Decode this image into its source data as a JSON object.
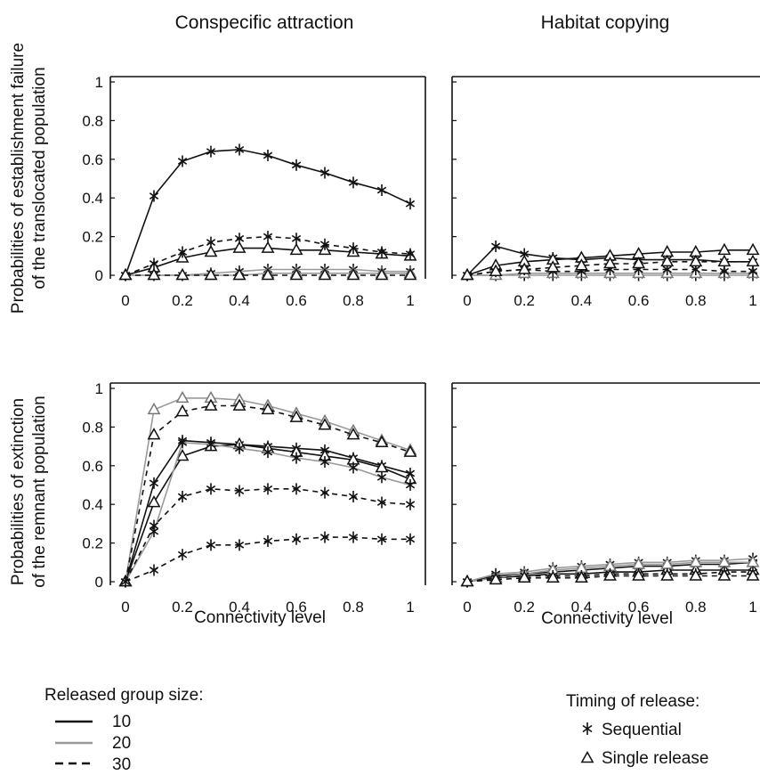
{
  "column_titles": [
    "Conspecific attraction",
    "Habitat copying"
  ],
  "row_labels": [
    [
      "Probabilities of establishment failure",
      "of the translocated population"
    ],
    [
      "Probabilities of extinction",
      "of the remnant population"
    ]
  ],
  "legend": {
    "group_size_title": "Released group size:",
    "group_sizes": [
      {
        "label": "10",
        "color": "#111111",
        "dash": "solid"
      },
      {
        "label": "20",
        "color": "#9a9a9a",
        "dash": "solid"
      },
      {
        "label": "30",
        "color": "#111111",
        "dash": "dashed"
      }
    ],
    "timing_title": "Timing of release:",
    "timings": [
      {
        "label": "Sequential",
        "marker": "asterisk"
      },
      {
        "label": "Single release",
        "marker": "triangle"
      }
    ]
  },
  "chart_data": [
    {
      "type": "line",
      "title": "Conspecific attraction",
      "xlabel": "",
      "ylabel": "Probabilities of establishment failure of the translocated population",
      "xlim": [
        0,
        1
      ],
      "ylim": [
        0,
        1
      ],
      "x": [
        0,
        0.1,
        0.2,
        0.3,
        0.4,
        0.5,
        0.6,
        0.7,
        0.8,
        0.9,
        1
      ],
      "x_ticks": [
        "0",
        "0.2",
        "0.4",
        "0.6",
        "0.8",
        "1"
      ],
      "y_ticks": [
        "0",
        "0.2",
        "0.4",
        "0.6",
        "0.8",
        "1"
      ],
      "series": [
        {
          "size": "10",
          "timing": "Sequential",
          "values": [
            0,
            0.41,
            0.59,
            0.64,
            0.65,
            0.62,
            0.57,
            0.53,
            0.48,
            0.44,
            0.37
          ]
        },
        {
          "size": "10",
          "timing": "Single release",
          "values": [
            0,
            0.04,
            0.09,
            0.12,
            0.14,
            0.14,
            0.13,
            0.13,
            0.12,
            0.11,
            0.1
          ]
        },
        {
          "size": "20",
          "timing": "Sequential",
          "values": [
            0,
            0,
            0,
            0.01,
            0.02,
            0.03,
            0.03,
            0.03,
            0.03,
            0.02,
            0.02
          ]
        },
        {
          "size": "20",
          "timing": "Single release",
          "values": [
            0,
            0,
            0,
            0,
            0,
            0.01,
            0.01,
            0.01,
            0.01,
            0.01,
            0.01
          ]
        },
        {
          "size": "30",
          "timing": "Sequential",
          "values": [
            0,
            0.06,
            0.12,
            0.17,
            0.19,
            0.2,
            0.19,
            0.16,
            0.14,
            0.12,
            0.11
          ]
        },
        {
          "size": "30",
          "timing": "Single release",
          "values": [
            0,
            0,
            0,
            0,
            0,
            0,
            0,
            0,
            0,
            0,
            0
          ]
        }
      ]
    },
    {
      "type": "line",
      "title": "Habitat copying",
      "xlabel": "",
      "ylabel": "",
      "xlim": [
        0,
        1
      ],
      "ylim": [
        0,
        1
      ],
      "x": [
        0,
        0.1,
        0.2,
        0.3,
        0.4,
        0.5,
        0.6,
        0.7,
        0.8,
        0.9,
        1
      ],
      "x_ticks": [
        "0",
        "0.2",
        "0.4",
        "0.6",
        "0.8",
        "1"
      ],
      "y_ticks": [],
      "series": [
        {
          "size": "10",
          "timing": "Sequential",
          "values": [
            0,
            0.15,
            0.11,
            0.09,
            0.08,
            0.09,
            0.08,
            0.08,
            0.08,
            0.07,
            0.07
          ]
        },
        {
          "size": "10",
          "timing": "Single release",
          "values": [
            0,
            0.05,
            0.07,
            0.08,
            0.09,
            0.1,
            0.11,
            0.12,
            0.12,
            0.13,
            0.13
          ]
        },
        {
          "size": "20",
          "timing": "Sequential",
          "values": [
            0,
            0,
            0,
            0,
            0,
            0,
            0,
            0,
            0,
            0,
            0
          ]
        },
        {
          "size": "20",
          "timing": "Single release",
          "values": [
            0,
            0,
            0.01,
            0.01,
            0.01,
            0.01,
            0.01,
            0.01,
            0.01,
            0.01,
            0.01
          ]
        },
        {
          "size": "30",
          "timing": "Sequential",
          "values": [
            0,
            0.02,
            0.03,
            0.02,
            0.02,
            0.03,
            0.03,
            0.03,
            0.03,
            0.02,
            0.02
          ]
        },
        {
          "size": "30",
          "timing": "Single release",
          "values": [
            0,
            0.02,
            0.03,
            0.04,
            0.05,
            0.06,
            0.06,
            0.07,
            0.07,
            0.07,
            0.07
          ]
        }
      ]
    },
    {
      "type": "line",
      "title": "",
      "xlabel": "Connectivity level",
      "ylabel": "Probabilities of extinction of the remnant population",
      "xlim": [
        0,
        1
      ],
      "ylim": [
        0,
        1
      ],
      "x": [
        0,
        0.1,
        0.2,
        0.3,
        0.4,
        0.5,
        0.6,
        0.7,
        0.8,
        0.9,
        1
      ],
      "x_ticks": [
        "0",
        "0.2",
        "0.4",
        "0.6",
        "0.8",
        "1"
      ],
      "y_ticks": [
        "0",
        "0.2",
        "0.4",
        "0.6",
        "0.8",
        "1"
      ],
      "series": [
        {
          "size": "10",
          "timing": "Sequential",
          "values": [
            0,
            0.51,
            0.73,
            0.72,
            0.71,
            0.7,
            0.69,
            0.68,
            0.64,
            0.6,
            0.56
          ]
        },
        {
          "size": "10",
          "timing": "Single release",
          "values": [
            0,
            0.41,
            0.65,
            0.7,
            0.71,
            0.69,
            0.67,
            0.65,
            0.63,
            0.59,
            0.53
          ]
        },
        {
          "size": "20",
          "timing": "Sequential",
          "values": [
            0,
            0.26,
            0.72,
            0.71,
            0.69,
            0.67,
            0.64,
            0.62,
            0.59,
            0.54,
            0.5
          ]
        },
        {
          "size": "20",
          "timing": "Single release",
          "values": [
            0,
            0.89,
            0.95,
            0.95,
            0.94,
            0.91,
            0.87,
            0.83,
            0.78,
            0.73,
            0.68
          ]
        },
        {
          "size": "30",
          "timing": "Sequential",
          "values": [
            0,
            0.06,
            0.14,
            0.19,
            0.19,
            0.21,
            0.22,
            0.23,
            0.23,
            0.22,
            0.22
          ]
        },
        {
          "size": "30",
          "timing": "Single release",
          "values": [
            0,
            0.76,
            0.88,
            0.91,
            0.91,
            0.89,
            0.85,
            0.81,
            0.76,
            0.72,
            0.67
          ]
        },
        {
          "size": "30",
          "timing": "Sequential",
          "values": [
            0,
            0.29,
            0.44,
            0.48,
            0.47,
            0.48,
            0.48,
            0.46,
            0.44,
            0.41,
            0.4
          ]
        }
      ]
    },
    {
      "type": "line",
      "title": "",
      "xlabel": "Connectivity level",
      "ylabel": "",
      "xlim": [
        0,
        1
      ],
      "ylim": [
        0,
        1
      ],
      "x": [
        0,
        0.1,
        0.2,
        0.3,
        0.4,
        0.5,
        0.6,
        0.7,
        0.8,
        0.9,
        1
      ],
      "x_ticks": [
        "0",
        "0.2",
        "0.4",
        "0.6",
        "0.8",
        "1"
      ],
      "y_ticks": [],
      "series": [
        {
          "size": "10",
          "timing": "Sequential",
          "values": [
            0,
            0.03,
            0.04,
            0.05,
            0.06,
            0.07,
            0.08,
            0.08,
            0.09,
            0.09,
            0.1
          ]
        },
        {
          "size": "10",
          "timing": "Single release",
          "values": [
            0,
            0.02,
            0.03,
            0.04,
            0.04,
            0.05,
            0.05,
            0.06,
            0.06,
            0.06,
            0.06
          ]
        },
        {
          "size": "20",
          "timing": "Sequential",
          "values": [
            0,
            0.04,
            0.05,
            0.07,
            0.08,
            0.09,
            0.1,
            0.1,
            0.11,
            0.11,
            0.12
          ]
        },
        {
          "size": "20",
          "timing": "Single release",
          "values": [
            0,
            0.02,
            0.04,
            0.06,
            0.07,
            0.08,
            0.09,
            0.09,
            0.1,
            0.1,
            0.1
          ]
        },
        {
          "size": "30",
          "timing": "Sequential",
          "values": [
            0,
            0.02,
            0.03,
            0.03,
            0.03,
            0.04,
            0.04,
            0.04,
            0.04,
            0.05,
            0.05
          ]
        },
        {
          "size": "30",
          "timing": "Single release",
          "values": [
            0,
            0.01,
            0.02,
            0.02,
            0.02,
            0.03,
            0.03,
            0.03,
            0.03,
            0.03,
            0.03
          ]
        }
      ]
    }
  ]
}
